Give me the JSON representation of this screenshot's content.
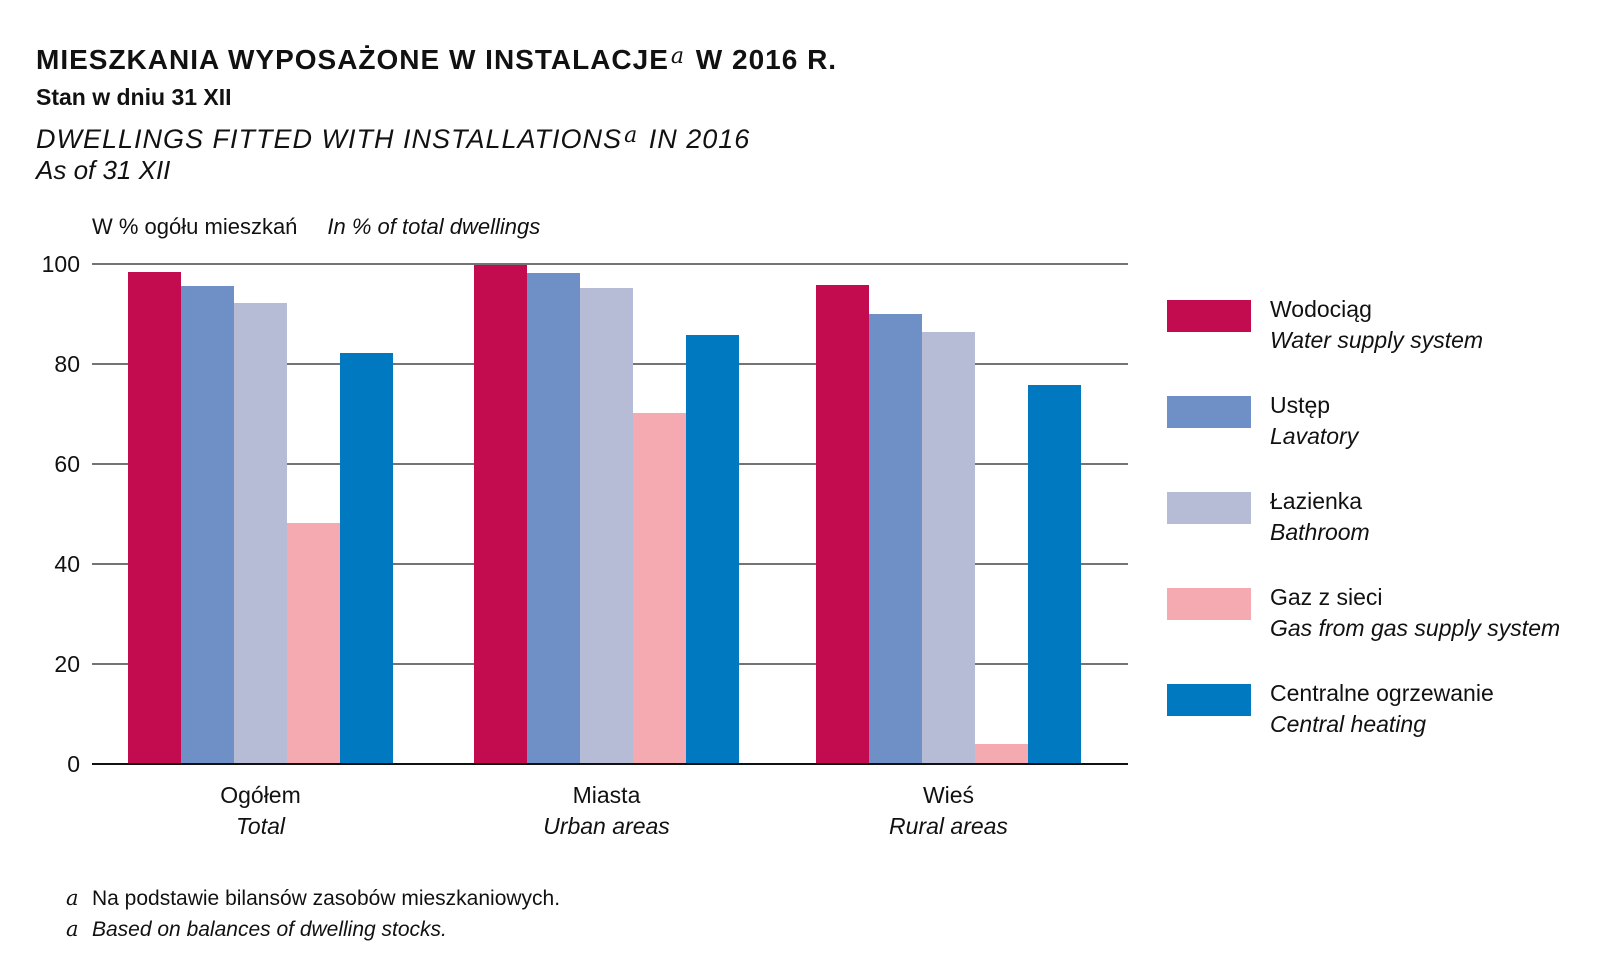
{
  "header": {
    "title_pl_before": "MIESZKANIA  WYPOSAŻONE  W  INSTALACJE",
    "title_pl_after": " W  2016 R.",
    "subtitle_pl": "Stan w dniu 31 XII",
    "title_en_before": "DWELLINGS  FITTED  WITH  INSTALLATIONS",
    "title_en_after": " IN  2016",
    "subtitle_en": "As of 31 XII",
    "footnote_marker": "a"
  },
  "unit": {
    "pl": "W % ogółu mieszkań",
    "en": "In % of total dwellings"
  },
  "footnotes": {
    "marker": "a",
    "pl": "Na podstawie bilansów zasobów mieszkaniowych.",
    "en": "Based on balances of dwelling stocks."
  },
  "chart_data": {
    "type": "bar",
    "categories": [
      "Ogółem",
      "Miasta",
      "Wieś"
    ],
    "categories_en": [
      "Total",
      "Urban areas",
      "Rural areas"
    ],
    "ylim": [
      0,
      100
    ],
    "yticks": [
      0,
      20,
      40,
      60,
      80,
      100
    ],
    "grid": true,
    "legend_position": "right",
    "series": [
      {
        "name": "Wodociąg",
        "name_en": "Water supply system",
        "color": "#c30b50",
        "values": [
          98.4,
          99.8,
          95.8
        ]
      },
      {
        "name": "Ustęp",
        "name_en": "Lavatory",
        "color": "#6f8fc7",
        "values": [
          95.6,
          98.2,
          90.0
        ]
      },
      {
        "name": "Łazienka",
        "name_en": "Bathroom",
        "color": "#b6bcd6",
        "values": [
          92.2,
          95.2,
          86.4
        ]
      },
      {
        "name": "Gaz z sieci",
        "name_en": "Gas from gas supply system",
        "color": "#f5a9b0",
        "values": [
          48.2,
          70.2,
          4.0
        ]
      },
      {
        "name": "Centralne ogrzewanie",
        "name_en": "Central heating",
        "color": "#0079c1",
        "values": [
          82.2,
          85.8,
          75.8
        ]
      }
    ]
  }
}
